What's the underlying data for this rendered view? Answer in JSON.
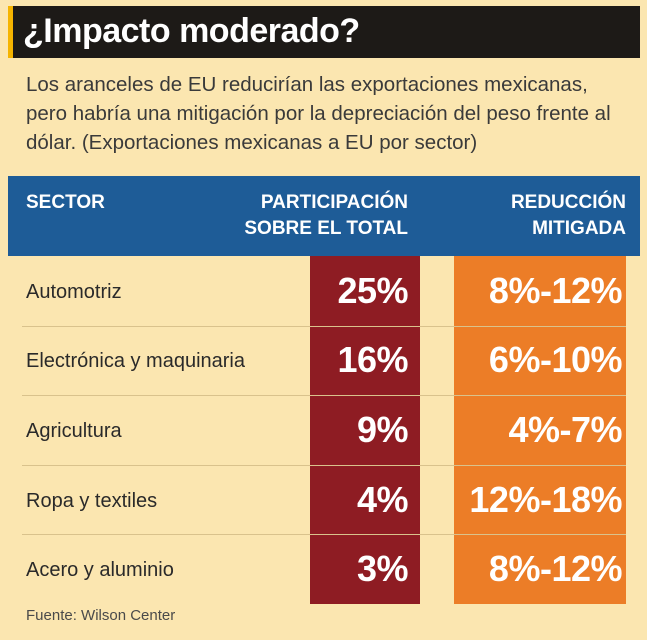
{
  "title": "¿Impacto moderado?",
  "subtitle": "Los aranceles de EU reducirían las exportaciones mexicanas, pero habría una mitigación por la depreciación del peso frente al dólar. (Exportaciones mexicanas a EU por sector)",
  "headers": {
    "sector": "SECTOR",
    "share_line1": "PARTICIPACIÓN",
    "share_line2": "SOBRE EL TOTAL",
    "reduction_line1": "REDUCCIÓN",
    "reduction_line2": "MITIGADA"
  },
  "source": "Fuente: Wilson Center",
  "colors": {
    "title_bg": "#1d1a17",
    "accent": "#f5b400",
    "header_bg": "#1e5c97",
    "share_column": "#8e1c23",
    "reduction_column": "#ec7d27",
    "background": "#fbe6b0"
  },
  "chart_data": {
    "type": "table",
    "title": "¿Impacto moderado?",
    "columns": [
      "SECTOR",
      "PARTICIPACIÓN SOBRE EL TOTAL",
      "REDUCCIÓN MITIGADA"
    ],
    "rows": [
      {
        "sector": "Automotriz",
        "share": "25%",
        "reduction": "8%-12%"
      },
      {
        "sector": "Electrónica y maquinaria",
        "share": "16%",
        "reduction": "6%-10%"
      },
      {
        "sector": "Agricultura",
        "share": "9%",
        "reduction": "4%-7%"
      },
      {
        "sector": "Ropa y textiles",
        "share": "4%",
        "reduction": "12%-18%"
      },
      {
        "sector": "Acero y aluminio",
        "share": "3%",
        "reduction": "8%-12%"
      }
    ]
  }
}
